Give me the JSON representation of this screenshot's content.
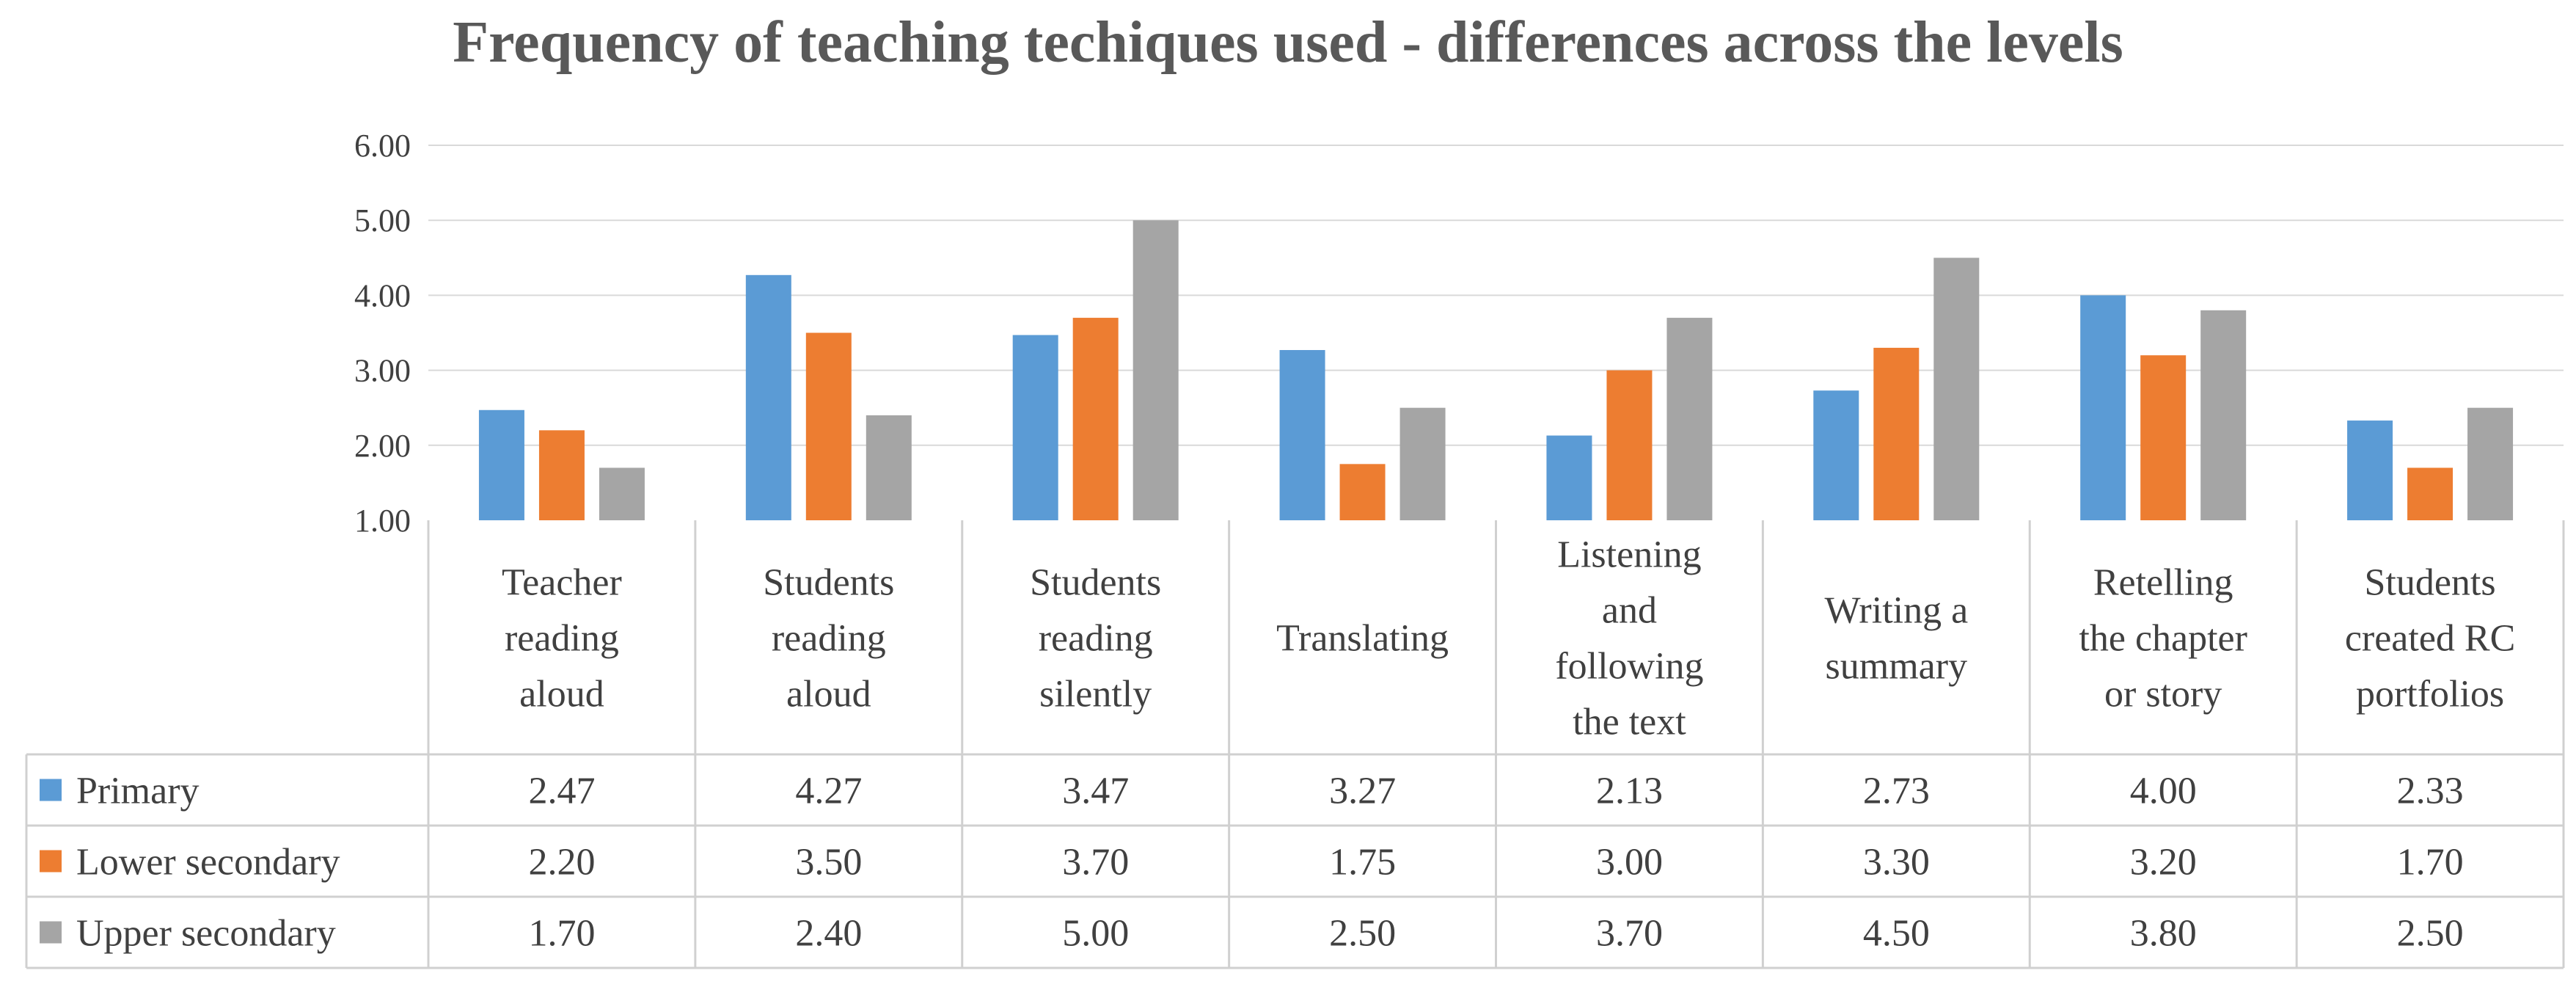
{
  "chart_data": {
    "type": "bar",
    "title": "Frequency of teaching techiques used - differences across the levels",
    "categories": [
      [
        "Teacher",
        "reading",
        "aloud"
      ],
      [
        "Students",
        "reading",
        "aloud"
      ],
      [
        "Students",
        "reading",
        "silently"
      ],
      [
        "Translating"
      ],
      [
        "Listening",
        "and",
        "following",
        "the text"
      ],
      [
        "Writing a",
        "summary"
      ],
      [
        "Retelling",
        "the chapter",
        "or story"
      ],
      [
        "Students",
        "created RC",
        "portfolios"
      ]
    ],
    "series": [
      {
        "name": "Primary",
        "color": "#5B9BD5",
        "values": [
          2.47,
          4.27,
          3.47,
          3.27,
          2.13,
          2.73,
          4.0,
          2.33
        ],
        "labels": [
          "2.47",
          "4.27",
          "3.47",
          "3.27",
          "2.13",
          "2.73",
          "4.00",
          "2.33"
        ]
      },
      {
        "name": "Lower secondary",
        "color": "#ED7D31",
        "values": [
          2.2,
          3.5,
          3.7,
          1.75,
          3.0,
          3.3,
          3.2,
          1.7
        ],
        "labels": [
          "2.20",
          "3.50",
          "3.70",
          "1.75",
          "3.00",
          "3.30",
          "3.20",
          "1.70"
        ]
      },
      {
        "name": "Upper secondary",
        "color": "#A5A5A5",
        "values": [
          1.7,
          2.4,
          5.0,
          2.5,
          3.7,
          4.5,
          3.8,
          2.5
        ],
        "labels": [
          "1.70",
          "2.40",
          "5.00",
          "2.50",
          "3.70",
          "4.50",
          "3.80",
          "2.50"
        ]
      }
    ],
    "ylim": [
      1,
      6
    ],
    "yticks": [
      "1.00",
      "2.00",
      "3.00",
      "4.00",
      "5.00",
      "6.00"
    ],
    "grid": true,
    "legend": "data-table",
    "xlabel": "",
    "ylabel": ""
  }
}
